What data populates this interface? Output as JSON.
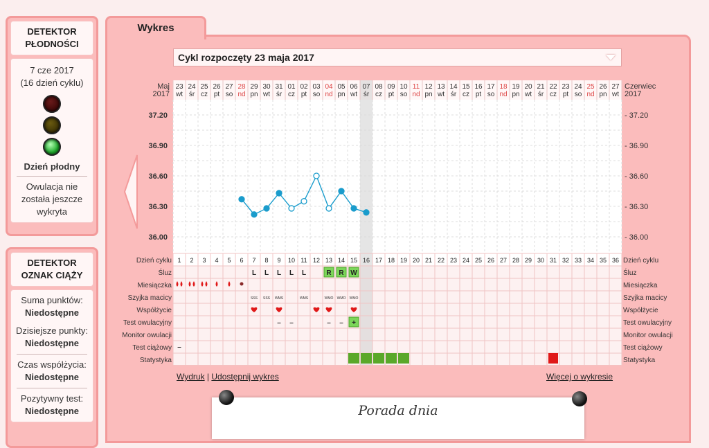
{
  "fertility": {
    "title_line1": "DETEKTOR",
    "title_line2": "PŁODNOŚCI",
    "date": "7 cze 2017",
    "cycle_day": "(16 dzień cyklu)",
    "status": "Dzień płodny",
    "ovulation_note": "Owulacja nie została jeszcze wykryta"
  },
  "pregnancy": {
    "title_line1": "DETEKTOR",
    "title_line2": "OZNAK CIĄŻY",
    "items": [
      {
        "label": "Suma punktów:",
        "value": "Niedostępne"
      },
      {
        "label": "Dzisiejsze punkty:",
        "value": "Niedostępne"
      },
      {
        "label": "Czas współżycia:",
        "value": "Niedostępne"
      },
      {
        "label": "Pozytywny test:",
        "value": "Niedostępne"
      }
    ]
  },
  "tab": {
    "label": "Wykres"
  },
  "cycle_select": {
    "value": "Cykl rozpoczęty 23 maja 2017"
  },
  "month_left": {
    "month": "Maj",
    "year": "2017"
  },
  "month_right": {
    "month": "Czerwiec",
    "year": "2017"
  },
  "dates": [
    "23",
    "24",
    "25",
    "26",
    "27",
    "28",
    "29",
    "30",
    "31",
    "01",
    "02",
    "03",
    "04",
    "05",
    "06",
    "07",
    "08",
    "09",
    "10",
    "11",
    "12",
    "13",
    "14",
    "15",
    "16",
    "17",
    "18",
    "19",
    "20",
    "21",
    "22",
    "23",
    "24",
    "25",
    "26",
    "27"
  ],
  "weekdays": [
    "wt",
    "śr",
    "cz",
    "pt",
    "so",
    "nd",
    "pn",
    "wt",
    "śr",
    "cz",
    "pt",
    "so",
    "nd",
    "pn",
    "wt",
    "śr",
    "cz",
    "pt",
    "so",
    "nd",
    "pn",
    "wt",
    "śr",
    "cz",
    "pt",
    "so",
    "nd",
    "pn",
    "wt",
    "śr",
    "cz",
    "pt",
    "so",
    "nd",
    "pn",
    "wt"
  ],
  "sundays": [
    5,
    12,
    19,
    26,
    33
  ],
  "today_index": 15,
  "chart_data": {
    "type": "line",
    "x": [
      6,
      7,
      8,
      9,
      10,
      11,
      12,
      13,
      14,
      15,
      16
    ],
    "y": [
      36.37,
      36.22,
      36.28,
      36.43,
      36.28,
      36.35,
      36.6,
      36.28,
      36.45,
      36.28,
      36.24
    ],
    "hollow": [
      false,
      false,
      false,
      false,
      true,
      true,
      true,
      true,
      false,
      false,
      false
    ],
    "ylim": [
      36.0,
      37.2
    ],
    "yticks": [
      "37.20",
      "36.90",
      "36.60",
      "36.30",
      "36.00"
    ],
    "yticks_right": [
      "- 37.20",
      "- 36.90",
      "- 36.60",
      "- 36.30",
      "- 36.00"
    ]
  },
  "row_labels": [
    "Dzień cyklu",
    "Śluz",
    "Miesiączka",
    "Szyjka macicy",
    "Współżycie",
    "Test owulacyjny",
    "Monitor owulacji",
    "Test ciążowy",
    "Statystyka"
  ],
  "cycle_days": [
    "1",
    "2",
    "3",
    "4",
    "5",
    "6",
    "7",
    "8",
    "9",
    "10",
    "11",
    "12",
    "13",
    "14",
    "15",
    "16",
    "17",
    "18",
    "19",
    "20",
    "21",
    "22",
    "23",
    "24",
    "25",
    "26",
    "27",
    "28",
    "29",
    "30",
    "31",
    "32",
    "33",
    "34",
    "35",
    "36"
  ],
  "mucus": {
    "7": "L",
    "8": "L",
    "9": "L",
    "10": "L",
    "11": "L",
    "13": "R",
    "14": "R",
    "15": "W"
  },
  "cervix": {
    "7": "SSS",
    "8": "SSS",
    "9": "WMS",
    "11": "WMS",
    "13": "WMO",
    "14": "WMO",
    "15": "WMO"
  },
  "ovulation_test": {
    "9": "–",
    "10": "–",
    "13": "–",
    "14": "–",
    "15": "+"
  },
  "pregnancy_test": {
    "1": "–"
  },
  "links": {
    "print": "Wydruk",
    "separator": "|",
    "share": "Udostępnij wykres",
    "more": "Więcej o wykresie"
  },
  "tip": {
    "title": "Porada dnia"
  },
  "colors": {
    "accent": "#f39a9a",
    "panel": "#fbbcbc",
    "line": "#1a9ccc",
    "sunday": "#d44",
    "fertile_green": "#5aa82a",
    "red": "#e01818"
  }
}
